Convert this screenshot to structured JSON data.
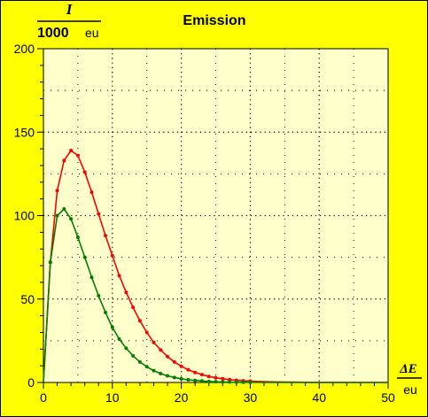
{
  "chart_data": {
    "type": "line",
    "title": "Emission",
    "ylabel": {
      "numerator": "I",
      "denominator_number": "1000",
      "denominator_unit": "eu"
    },
    "xlabel": {
      "numerator": "ΔE",
      "denominator": "eu"
    },
    "xlim": [
      0,
      50
    ],
    "ylim": [
      0,
      200
    ],
    "xticks": [
      0,
      10,
      20,
      30,
      40,
      50
    ],
    "yticks": [
      0,
      50,
      100,
      150,
      200
    ],
    "grid": true,
    "background": "#ffffcc",
    "frame_color": "#ffff00",
    "series": [
      {
        "color": "#ff0000",
        "x": [
          0,
          1,
          2,
          3,
          4,
          5,
          6,
          7,
          8,
          9,
          10,
          11,
          12,
          13,
          14,
          15,
          16,
          17,
          18,
          19,
          20,
          21,
          22,
          23,
          24,
          25,
          26,
          27,
          28,
          29,
          30,
          32,
          34,
          36,
          38,
          40,
          45,
          50
        ],
        "values": [
          0,
          72,
          115,
          133,
          139,
          136,
          126,
          114,
          101,
          88,
          76,
          64,
          54,
          45,
          37,
          30,
          24,
          19.5,
          15.5,
          12.3,
          9.7,
          7.6,
          6.0,
          4.7,
          3.6,
          2.8,
          2.2,
          1.7,
          1.3,
          1.0,
          0.8,
          0.5,
          0.3,
          0.2,
          0.1,
          0.07,
          0.02,
          0.01
        ]
      },
      {
        "color": "#008000",
        "x": [
          0,
          1,
          2,
          3,
          4,
          5,
          6,
          7,
          8,
          9,
          10,
          11,
          12,
          13,
          14,
          15,
          16,
          17,
          18,
          19,
          20,
          21,
          22,
          23,
          24,
          25,
          26,
          27,
          28,
          29,
          30,
          32,
          34,
          36,
          38,
          40,
          45,
          50
        ],
        "values": [
          0,
          72,
          100,
          104,
          98,
          87,
          75,
          63,
          52,
          42,
          33,
          26,
          20.5,
          16,
          12.3,
          9.4,
          7.1,
          5.3,
          4.0,
          3.0,
          2.2,
          1.6,
          1.2,
          0.9,
          0.6,
          0.45,
          0.33,
          0.24,
          0.17,
          0.12,
          0.09,
          0.05,
          0.03,
          0.01,
          0.01,
          0.0,
          0.0,
          0.0
        ]
      }
    ]
  }
}
